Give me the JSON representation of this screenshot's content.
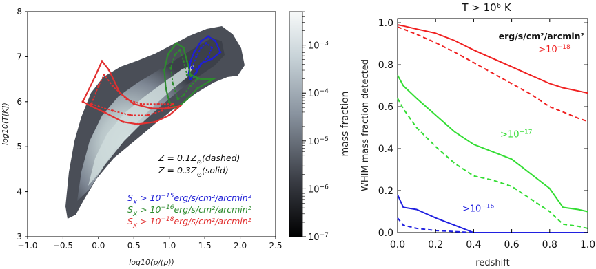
{
  "chart_data": [
    {
      "type": "heatmap",
      "xlabel": "log10(ρ/⟨ρ⟩)",
      "ylabel": "log10(T[K])",
      "xlim": [
        -1.0,
        2.5
      ],
      "ylim": [
        3,
        8
      ],
      "xticks": [
        "−1.0",
        "−0.5",
        "0.0",
        "0.5",
        "1.0",
        "1.5",
        "2.0",
        "2.5"
      ],
      "yticks": [
        "3",
        "4",
        "5",
        "6",
        "7",
        "8"
      ],
      "colorbar": {
        "label": "mass fraction",
        "scale": "log",
        "range": [
          1e-07,
          0.005
        ],
        "ticks": [
          {
            "base": "10",
            "exp": "−3",
            "value": -3
          },
          {
            "base": "10",
            "exp": "−4",
            "value": -4
          },
          {
            "base": "10",
            "exp": "−5",
            "value": -5
          },
          {
            "base": "10",
            "exp": "−6",
            "value": -6
          },
          {
            "base": "10",
            "exp": "−7",
            "value": -7
          }
        ],
        "colors": [
          "#000000",
          "#ffffff"
        ]
      },
      "metallicity_lines": [
        {
          "pre": "Z = 0.1Z",
          "sub": "⊙",
          "post": "(dashed)"
        },
        {
          "pre": "Z = 0.3Z",
          "sub": "⊙",
          "post": "(solid)"
        }
      ],
      "series": [
        {
          "label_main": "S",
          "label_sub": "X",
          "label_mid": " > 10",
          "label_exp": "−15",
          "label_unit": "erg/s/cm²/arcmin²",
          "color": "#1f1fd6",
          "solid": [
            [
              1.27,
              6.6
            ],
            [
              1.3,
              6.9
            ],
            [
              1.35,
              7.1
            ],
            [
              1.45,
              7.35
            ],
            [
              1.55,
              7.45
            ],
            [
              1.65,
              7.35
            ],
            [
              1.72,
              7.1
            ],
            [
              1.6,
              6.95
            ],
            [
              1.45,
              6.85
            ],
            [
              1.38,
              6.65
            ],
            [
              1.3,
              6.5
            ],
            [
              1.27,
              6.6
            ]
          ],
          "dashed": [
            [
              1.32,
              6.75
            ],
            [
              1.38,
              7.0
            ],
            [
              1.45,
              7.2
            ],
            [
              1.52,
              7.3
            ],
            [
              1.6,
              7.2
            ],
            [
              1.55,
              7.0
            ],
            [
              1.45,
              6.85
            ],
            [
              1.38,
              6.72
            ],
            [
              1.32,
              6.75
            ]
          ]
        },
        {
          "label_main": "S",
          "label_sub": "X",
          "label_mid": " > 10",
          "label_exp": "−16",
          "label_unit": "erg/s/cm²/arcmin²",
          "color": "#2e8b2e",
          "solid": [
            [
              0.95,
              6.3
            ],
            [
              0.93,
              6.7
            ],
            [
              0.98,
              7.05
            ],
            [
              1.1,
              7.3
            ],
            [
              1.2,
              7.2
            ],
            [
              1.25,
              6.9
            ],
            [
              1.3,
              6.6
            ],
            [
              1.45,
              6.5
            ],
            [
              1.62,
              6.5
            ],
            [
              1.4,
              6.3
            ],
            [
              1.25,
              6.05
            ],
            [
              1.1,
              5.85
            ],
            [
              1.0,
              6.0
            ],
            [
              0.95,
              6.3
            ]
          ],
          "dashed": [
            [
              1.05,
              6.4
            ],
            [
              1.02,
              6.75
            ],
            [
              1.08,
              7.05
            ],
            [
              1.15,
              7.15
            ],
            [
              1.2,
              6.9
            ],
            [
              1.25,
              6.6
            ],
            [
              1.4,
              6.5
            ],
            [
              1.3,
              6.35
            ],
            [
              1.2,
              6.15
            ],
            [
              1.12,
              6.05
            ],
            [
              1.05,
              6.4
            ]
          ]
        },
        {
          "label_main": "S",
          "label_sub": "X",
          "label_mid": " > 10",
          "label_exp": "−18",
          "label_unit": "erg/s/cm²/arcmin²",
          "color": "#e23030",
          "solid": [
            [
              -0.22,
              6.0
            ],
            [
              -0.05,
              6.55
            ],
            [
              0.05,
              6.9
            ],
            [
              0.15,
              6.7
            ],
            [
              0.3,
              6.2
            ],
            [
              0.5,
              5.95
            ],
            [
              0.75,
              5.85
            ],
            [
              0.95,
              5.85
            ],
            [
              1.15,
              5.9
            ],
            [
              1.0,
              5.7
            ],
            [
              0.8,
              5.55
            ],
            [
              0.55,
              5.5
            ],
            [
              0.35,
              5.55
            ],
            [
              0.1,
              5.75
            ],
            [
              -0.1,
              5.9
            ],
            [
              -0.22,
              6.0
            ]
          ],
          "dashed": [
            [
              -0.1,
              5.95
            ],
            [
              0.0,
              6.35
            ],
            [
              0.08,
              6.6
            ],
            [
              0.2,
              6.35
            ],
            [
              0.4,
              6.05
            ],
            [
              0.6,
              5.95
            ],
            [
              0.85,
              5.95
            ],
            [
              1.05,
              5.95
            ],
            [
              0.9,
              5.8
            ],
            [
              0.7,
              5.7
            ],
            [
              0.45,
              5.7
            ],
            [
              0.2,
              5.8
            ],
            [
              -0.1,
              5.95
            ]
          ]
        }
      ]
    },
    {
      "type": "line",
      "title_pre": "T > 10",
      "title_exp": "6",
      "title_post": " K",
      "xlabel": "redshift",
      "ylabel": "WHIM mass fraction detected",
      "xlim": [
        0.0,
        1.0
      ],
      "ylim": [
        0.0,
        1.02
      ],
      "xticks": [
        "0.0",
        "0.2",
        "0.4",
        "0.6",
        "0.8",
        "1.0"
      ],
      "yticks": [
        "0.0",
        "0.2",
        "0.4",
        "0.6",
        "0.8",
        "1.0"
      ],
      "unit_label": "erg/s/cm²/arcmin²",
      "x": [
        0.0,
        0.03,
        0.1,
        0.2,
        0.3,
        0.4,
        0.5,
        0.6,
        0.7,
        0.8,
        0.87,
        0.95,
        1.0
      ],
      "series": [
        {
          "label_pre": ">10",
          "label_exp": "−18",
          "color": "#f02020",
          "label_at": [
            0.74,
            0.86
          ],
          "solid": [
            0.99,
            0.985,
            0.97,
            0.95,
            0.915,
            0.87,
            0.83,
            0.79,
            0.75,
            0.71,
            0.69,
            0.675,
            0.665
          ],
          "dashed": [
            0.98,
            0.97,
            0.945,
            0.905,
            0.86,
            0.81,
            0.76,
            0.71,
            0.66,
            0.6,
            0.575,
            0.545,
            0.53
          ]
        },
        {
          "label_pre": ">10",
          "label_exp": "−17",
          "color": "#33dd33",
          "label_at": [
            0.54,
            0.455
          ],
          "solid": [
            0.75,
            0.7,
            0.64,
            0.56,
            0.48,
            0.42,
            0.385,
            0.35,
            0.28,
            0.21,
            0.12,
            0.11,
            0.1
          ],
          "dashed": [
            0.64,
            0.59,
            0.5,
            0.41,
            0.33,
            0.27,
            0.25,
            0.22,
            0.16,
            0.1,
            0.04,
            0.03,
            0.02
          ]
        },
        {
          "label_pre": ">10",
          "label_exp": "−16",
          "color": "#2020e0",
          "label_at": [
            0.34,
            0.1
          ],
          "solid": [
            0.18,
            0.12,
            0.11,
            0.07,
            0.035,
            0.0,
            0.0,
            0.0,
            0.0,
            0.0,
            0.0,
            0.0,
            0.0
          ],
          "dashed": [
            0.07,
            0.035,
            0.02,
            0.01,
            0.005,
            0.0,
            0.0,
            0.0,
            0.0,
            0.0,
            0.0,
            0.0,
            0.0
          ]
        }
      ]
    }
  ]
}
